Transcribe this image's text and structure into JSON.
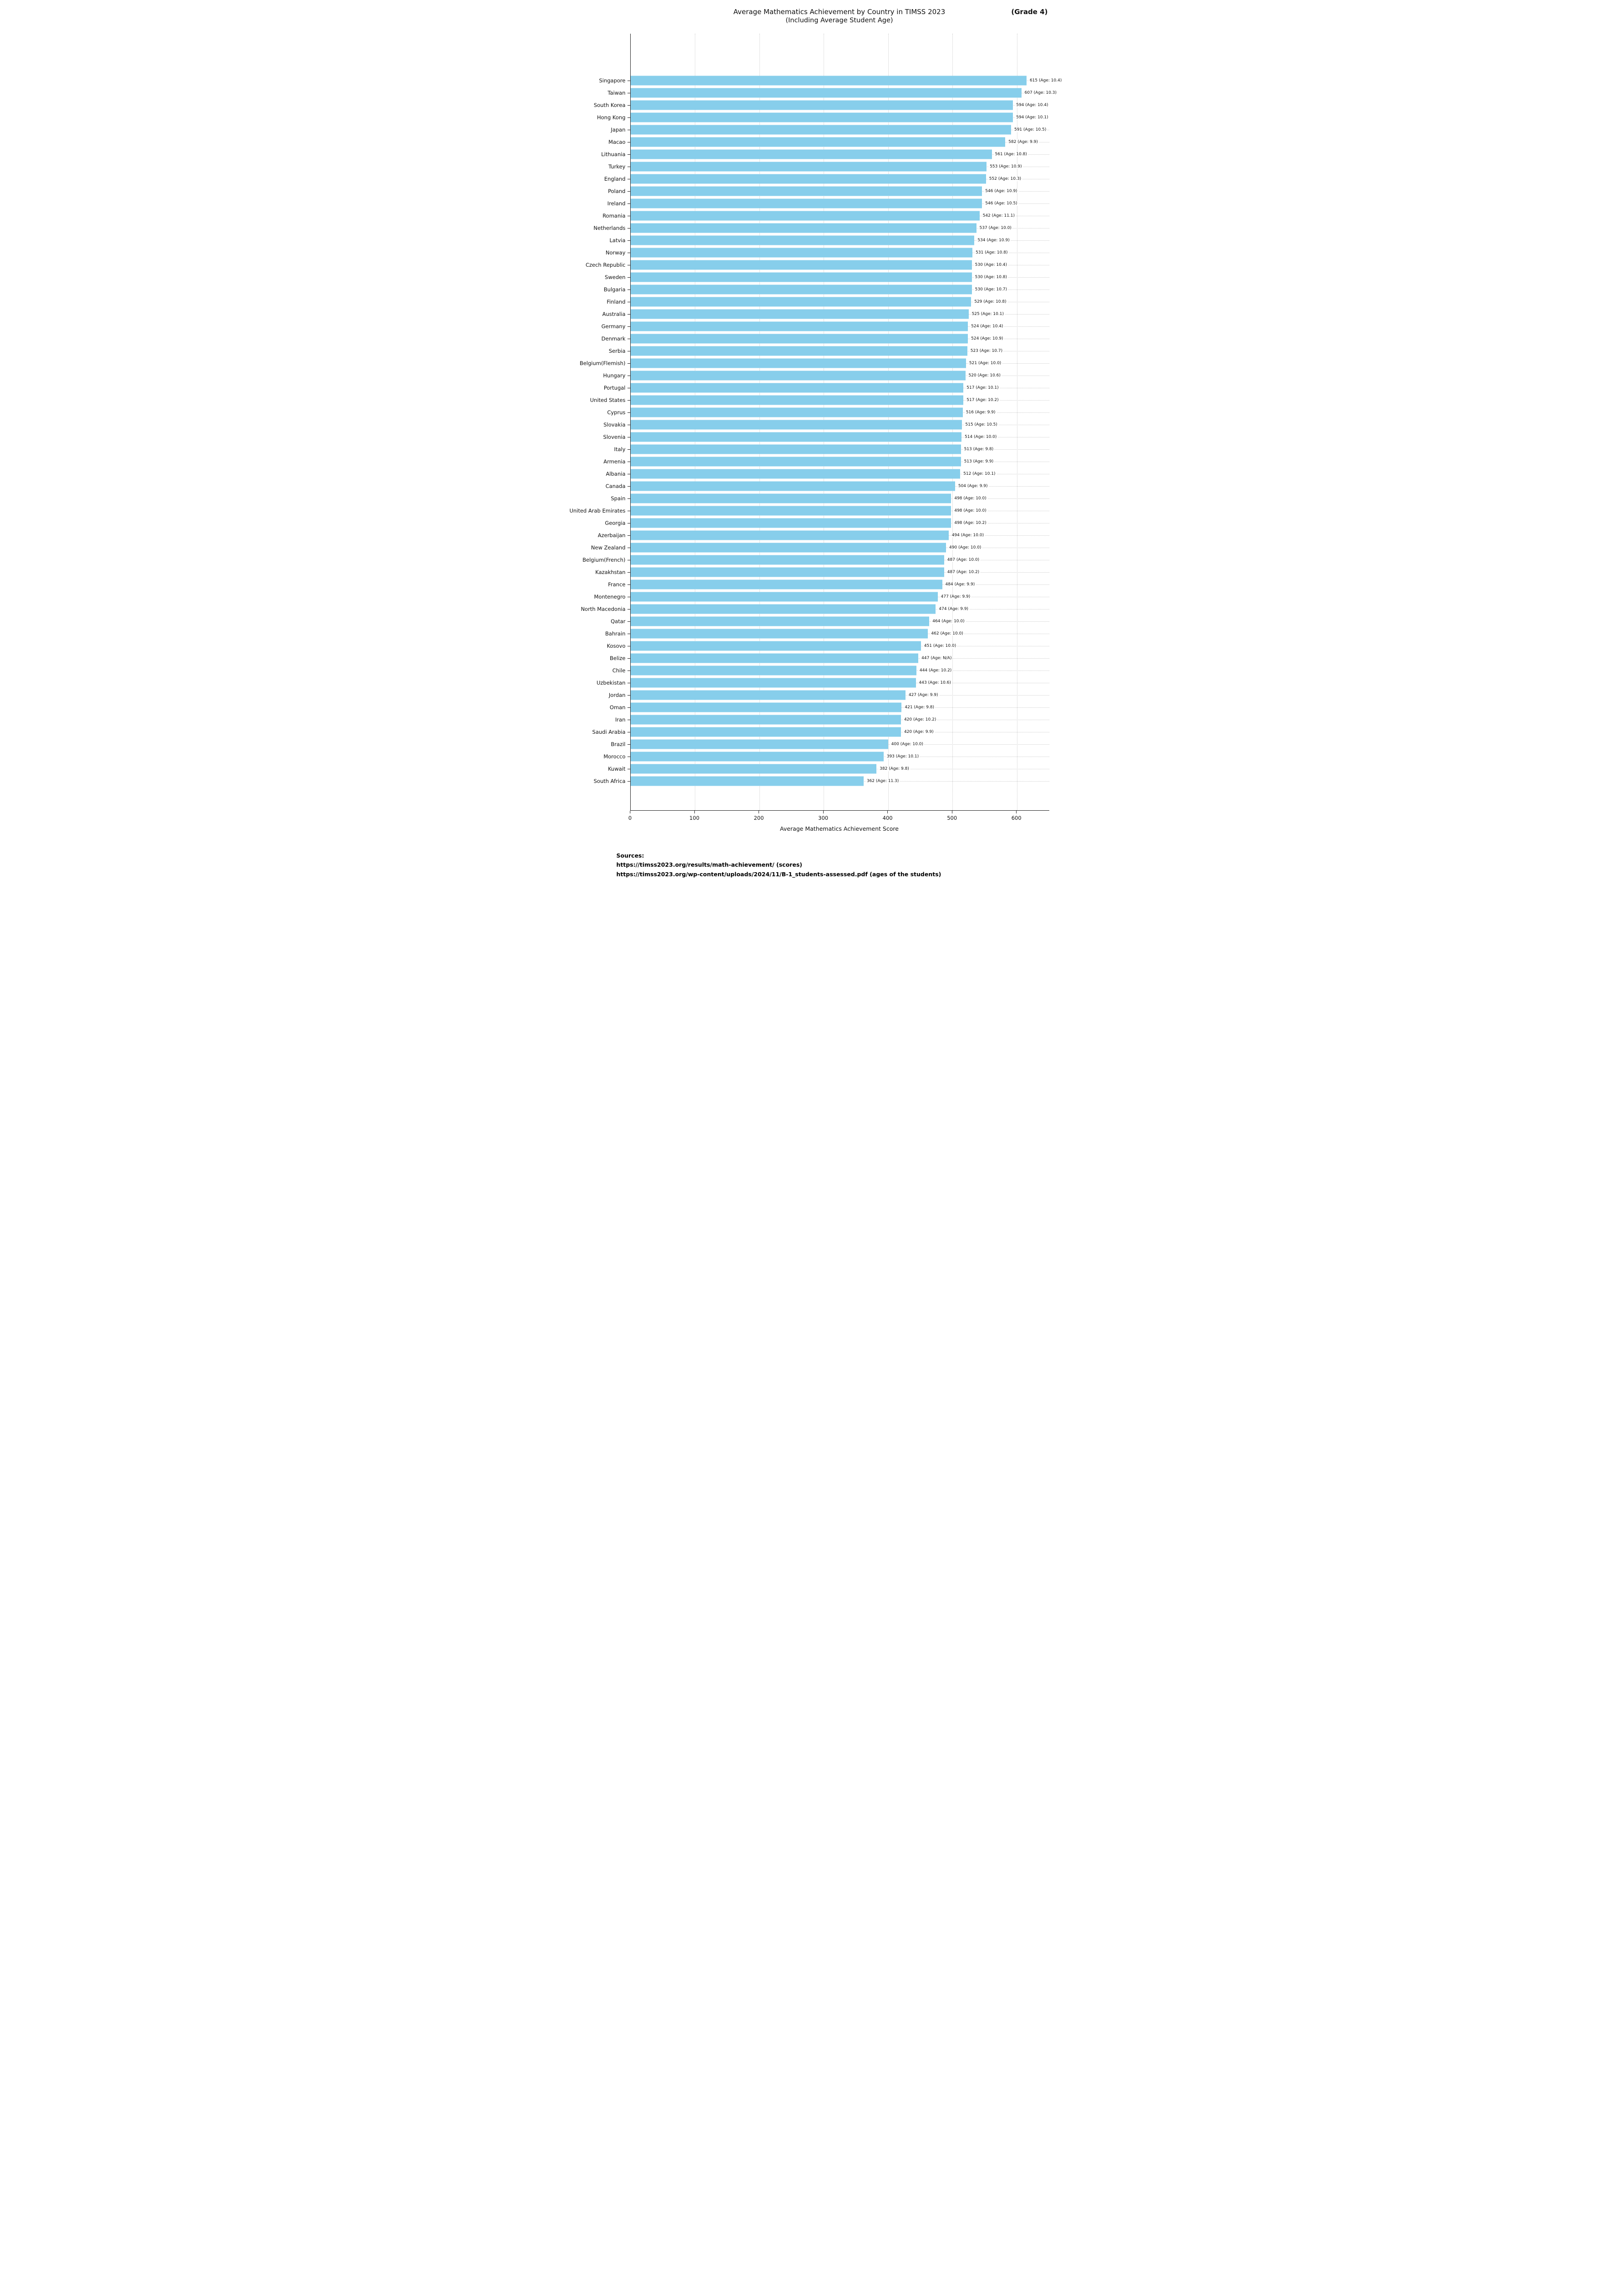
{
  "title": {
    "line1": "Average Mathematics Achievement by Country in TIMSS 2023",
    "line2": "(Including Average Student Age)",
    "grade_annotation": "(Grade 4)"
  },
  "chart_data": {
    "type": "bar",
    "orientation": "horizontal",
    "title": "Average Mathematics Achievement by Country in TIMSS 2023 (Including Average Student Age) (Grade 4)",
    "xlabel": "Average Mathematics Achievement Score",
    "xlim": [
      0,
      650
    ],
    "xticks": [
      0,
      100,
      200,
      300,
      400,
      500,
      600
    ],
    "grid": true,
    "bar_color": "#87CEEB",
    "bar_label_format": "{score} (Age: {age})",
    "rows": [
      {
        "country": "Singapore",
        "score": 615,
        "age": "10.4"
      },
      {
        "country": "Taiwan",
        "score": 607,
        "age": "10.3"
      },
      {
        "country": "South Korea",
        "score": 594,
        "age": "10.4"
      },
      {
        "country": "Hong Kong",
        "score": 594,
        "age": "10.1"
      },
      {
        "country": "Japan",
        "score": 591,
        "age": "10.5"
      },
      {
        "country": "Macao",
        "score": 582,
        "age": "9.9"
      },
      {
        "country": "Lithuania",
        "score": 561,
        "age": "10.8"
      },
      {
        "country": "Turkey",
        "score": 553,
        "age": "10.9"
      },
      {
        "country": "England",
        "score": 552,
        "age": "10.3"
      },
      {
        "country": "Poland",
        "score": 546,
        "age": "10.9"
      },
      {
        "country": "Ireland",
        "score": 546,
        "age": "10.5"
      },
      {
        "country": "Romania",
        "score": 542,
        "age": "11.1"
      },
      {
        "country": "Netherlands",
        "score": 537,
        "age": "10.0"
      },
      {
        "country": "Latvia",
        "score": 534,
        "age": "10.9"
      },
      {
        "country": "Norway",
        "score": 531,
        "age": "10.8"
      },
      {
        "country": "Czech Republic",
        "score": 530,
        "age": "10.4"
      },
      {
        "country": "Sweden",
        "score": 530,
        "age": "10.8"
      },
      {
        "country": "Bulgaria",
        "score": 530,
        "age": "10.7"
      },
      {
        "country": "Finland",
        "score": 529,
        "age": "10.8"
      },
      {
        "country": "Australia",
        "score": 525,
        "age": "10.1"
      },
      {
        "country": "Germany",
        "score": 524,
        "age": "10.4"
      },
      {
        "country": "Denmark",
        "score": 524,
        "age": "10.9"
      },
      {
        "country": "Serbia",
        "score": 523,
        "age": "10.7"
      },
      {
        "country": "Belgium(Flemish)",
        "score": 521,
        "age": "10.0"
      },
      {
        "country": "Hungary",
        "score": 520,
        "age": "10.6"
      },
      {
        "country": "Portugal",
        "score": 517,
        "age": "10.1"
      },
      {
        "country": "United States",
        "score": 517,
        "age": "10.2"
      },
      {
        "country": "Cyprus",
        "score": 516,
        "age": "9.9"
      },
      {
        "country": "Slovakia",
        "score": 515,
        "age": "10.5"
      },
      {
        "country": "Slovenia",
        "score": 514,
        "age": "10.0"
      },
      {
        "country": "Italy",
        "score": 513,
        "age": "9.8"
      },
      {
        "country": "Armenia",
        "score": 513,
        "age": "9.9"
      },
      {
        "country": "Albania",
        "score": 512,
        "age": "10.1"
      },
      {
        "country": "Canada",
        "score": 504,
        "age": "9.9"
      },
      {
        "country": "Spain",
        "score": 498,
        "age": "10.0"
      },
      {
        "country": "United Arab Emirates",
        "score": 498,
        "age": "10.0"
      },
      {
        "country": "Georgia",
        "score": 498,
        "age": "10.2"
      },
      {
        "country": "Azerbaijan",
        "score": 494,
        "age": "10.0"
      },
      {
        "country": "New Zealand",
        "score": 490,
        "age": "10.0"
      },
      {
        "country": "Belgium(French)",
        "score": 487,
        "age": "10.0"
      },
      {
        "country": "Kazakhstan",
        "score": 487,
        "age": "10.2"
      },
      {
        "country": "France",
        "score": 484,
        "age": "9.9"
      },
      {
        "country": "Montenegro",
        "score": 477,
        "age": "9.9"
      },
      {
        "country": "North Macedonia",
        "score": 474,
        "age": "9.9"
      },
      {
        "country": "Qatar",
        "score": 464,
        "age": "10.0"
      },
      {
        "country": "Bahrain",
        "score": 462,
        "age": "10.0"
      },
      {
        "country": "Kosovo",
        "score": 451,
        "age": "10.0"
      },
      {
        "country": "Belize",
        "score": 447,
        "age": "N/A"
      },
      {
        "country": "Chile",
        "score": 444,
        "age": "10.2"
      },
      {
        "country": "Uzbekistan",
        "score": 443,
        "age": "10.6"
      },
      {
        "country": "Jordan",
        "score": 427,
        "age": "9.9"
      },
      {
        "country": "Oman",
        "score": 421,
        "age": "9.8"
      },
      {
        "country": "Iran",
        "score": 420,
        "age": "10.2"
      },
      {
        "country": "Saudi Arabia",
        "score": 420,
        "age": "9.9"
      },
      {
        "country": "Brazil",
        "score": 400,
        "age": "10.0"
      },
      {
        "country": "Morocco",
        "score": 393,
        "age": "10.1"
      },
      {
        "country": "Kuwait",
        "score": 382,
        "age": "9.8"
      },
      {
        "country": "South Africa",
        "score": 362,
        "age": "11.3"
      }
    ]
  },
  "sources": {
    "heading": "Sources:",
    "lines": [
      "https://timss2023.org/results/math-achievement/ (scores)",
      "https://timss2023.org/wp-content/uploads/2024/11/B-1_students-assessed.pdf (ages of the students)"
    ]
  }
}
